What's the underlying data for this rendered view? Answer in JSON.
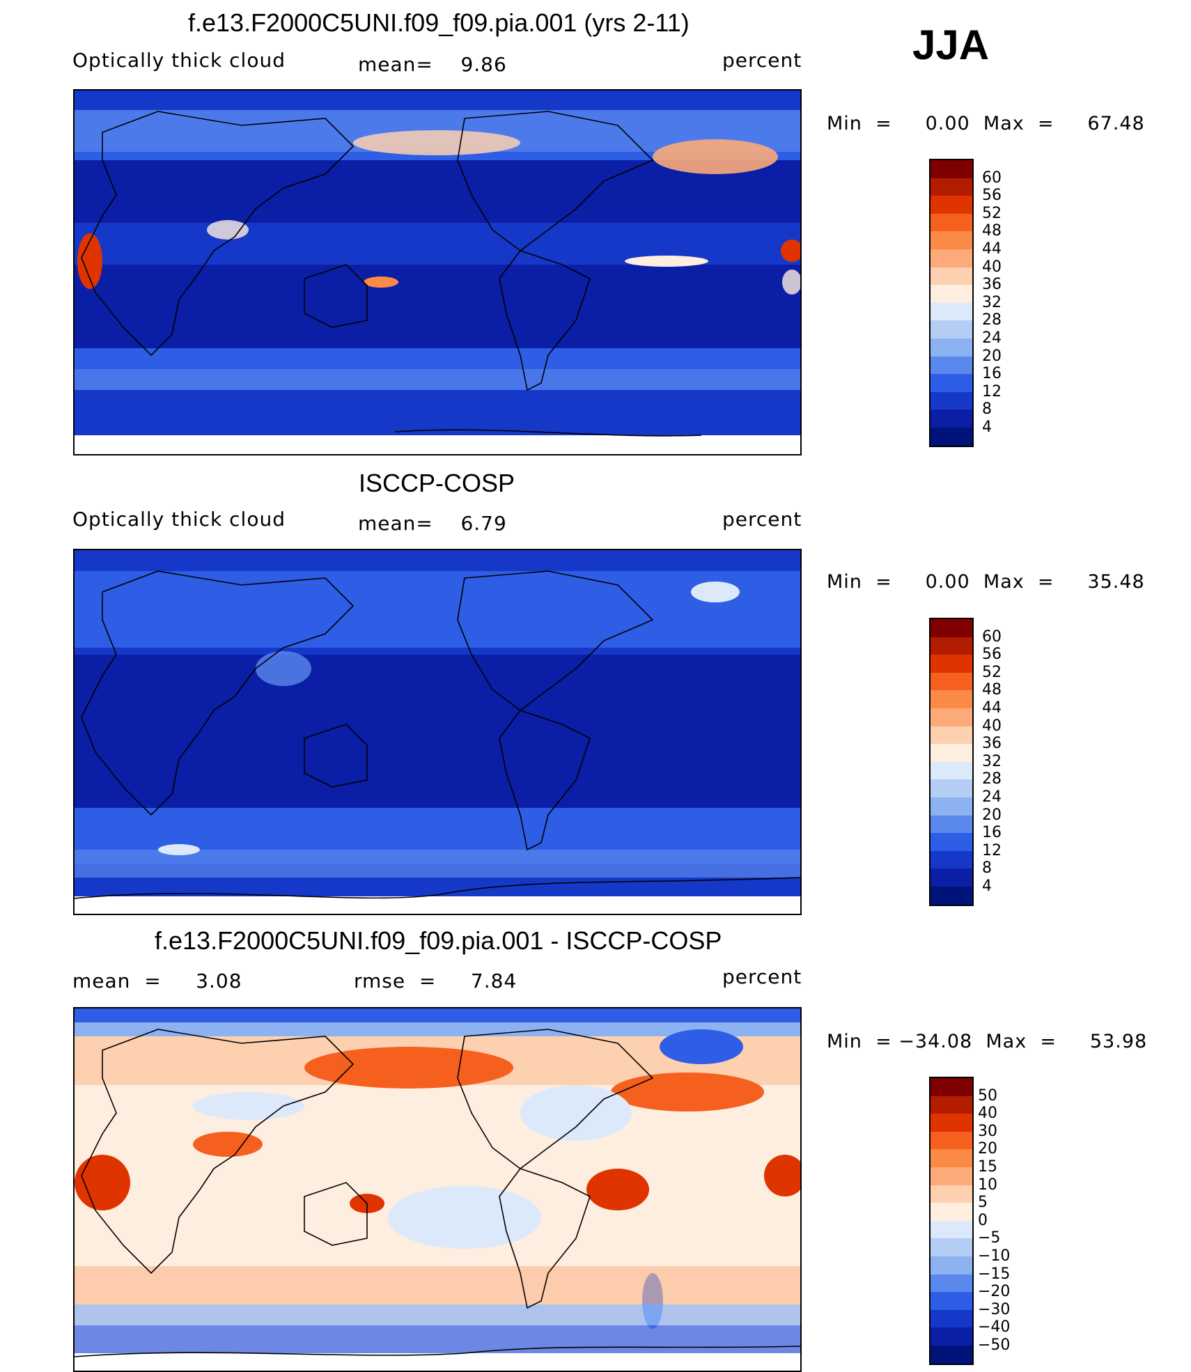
{
  "season": "JJA",
  "panels": [
    {
      "title": "f.e13.F2000C5UNI.f09_f09.pia.001 (yrs 2-11)",
      "variable": "Optically thick cloud",
      "stat1": "mean=    9.86",
      "units": "percent",
      "minmax": "Min  =     0.00  Max  =     67.48",
      "levels": [
        "60",
        "56",
        "52",
        "48",
        "44",
        "40",
        "36",
        "32",
        "28",
        "24",
        "20",
        "16",
        "12",
        "8",
        "4"
      ],
      "colors": [
        "#7f0000",
        "#b21d00",
        "#e03400",
        "#f5601e",
        "#fb8a46",
        "#fcaa7a",
        "#fdd0b0",
        "#fdeee0",
        "#dbe9fa",
        "#b4cdf5",
        "#8db2f2",
        "#5b88ed",
        "#2e5de6",
        "#1638c9",
        "#0a1fa6",
        "#00137a"
      ]
    },
    {
      "title": "ISCCP-COSP",
      "variable": "Optically thick cloud",
      "stat1": "mean=    6.79",
      "units": "percent",
      "minmax": "Min  =     0.00  Max  =     35.48",
      "levels": [
        "60",
        "56",
        "52",
        "48",
        "44",
        "40",
        "36",
        "32",
        "28",
        "24",
        "20",
        "16",
        "12",
        "8",
        "4"
      ],
      "colors": [
        "#7f0000",
        "#b21d00",
        "#e03400",
        "#f5601e",
        "#fb8a46",
        "#fcaa7a",
        "#fdd0b0",
        "#fdeee0",
        "#dbe9fa",
        "#b4cdf5",
        "#8db2f2",
        "#5b88ed",
        "#2e5de6",
        "#1638c9",
        "#0a1fa6",
        "#00137a"
      ]
    },
    {
      "title": "f.e13.F2000C5UNI.f09_f09.pia.001 - ISCCP-COSP",
      "stat1": "mean  =     3.08",
      "stat2": "rmse  =     7.84",
      "units": "percent",
      "minmax": "Min  = −34.08  Max  =     53.98",
      "levels": [
        "50",
        "40",
        "30",
        "20",
        "15",
        "10",
        "5",
        "0",
        "−5",
        "−10",
        "−15",
        "−20",
        "−30",
        "−40",
        "−50"
      ],
      "colors": [
        "#7f0000",
        "#b21d00",
        "#e03400",
        "#f5601e",
        "#fb8a46",
        "#fcaa7a",
        "#fdd0b0",
        "#fdeee0",
        "#dbe9fa",
        "#b4cdf5",
        "#8db2f2",
        "#5b88ed",
        "#2e5de6",
        "#1638c9",
        "#0a1fa6",
        "#00137a"
      ]
    }
  ]
}
